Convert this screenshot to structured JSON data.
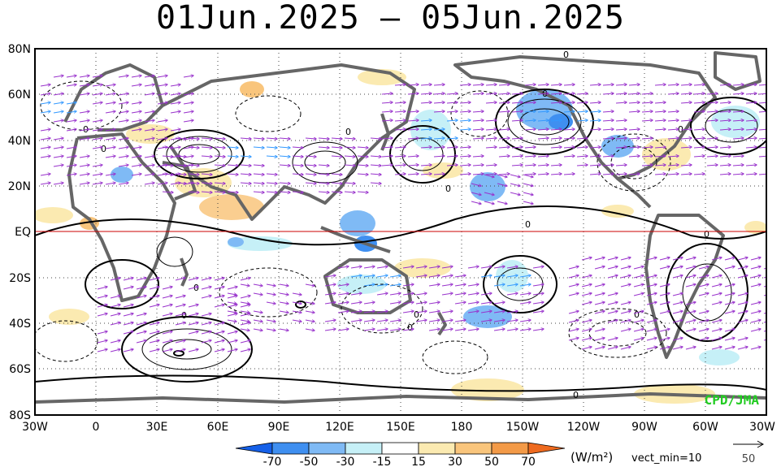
{
  "title": "01Jun.2025  –  05Jun.2025",
  "map": {
    "lat_labels": [
      "80N",
      "60N",
      "40N",
      "20N",
      "EQ",
      "20S",
      "40S",
      "60S",
      "80S"
    ],
    "lon_labels": [
      "30W",
      "0",
      "30E",
      "60E",
      "90E",
      "120E",
      "150E",
      "180",
      "150W",
      "120W",
      "90W",
      "60W",
      "30W"
    ],
    "equator_color": "#cc0000",
    "land_color": "#666666",
    "arrow_color": "#9933cc",
    "strong_arrow_color": "#3399ff"
  },
  "colorbar": {
    "ticks": [
      "-70",
      "-50",
      "-30",
      "-15",
      "15",
      "30",
      "50",
      "70"
    ],
    "colors": [
      "#1560e8",
      "#3f8ff0",
      "#7fbaf5",
      "#c6f0f7",
      "#ffffff",
      "#fbeab1",
      "#f9c57c",
      "#f39a47",
      "#ee6a1f"
    ],
    "unit": "(W/m²)",
    "vect_min": "vect_min=10",
    "ref_vector": "50"
  },
  "credit": "CPD/JMA",
  "contour_zero_label": "0"
}
